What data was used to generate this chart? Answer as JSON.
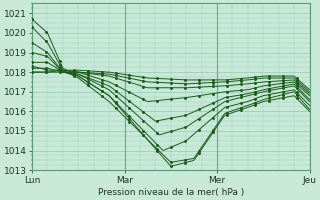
{
  "title": "",
  "xlabel": "Pression niveau de la mer( hPa )",
  "ylabel": "",
  "ylim": [
    1013,
    1021.5
  ],
  "xlim": [
    0,
    72
  ],
  "xtick_positions": [
    0,
    24,
    48,
    72
  ],
  "xtick_labels": [
    "Lun",
    "Mar",
    "Mer",
    "Jeu"
  ],
  "ytick_positions": [
    1013,
    1014,
    1015,
    1016,
    1017,
    1018,
    1019,
    1020,
    1021
  ],
  "background_color": "#c8e8d8",
  "grid_color": "#a0ccbc",
  "line_color": "#1a5c1a",
  "marker_color": "#1a5c1a"
}
